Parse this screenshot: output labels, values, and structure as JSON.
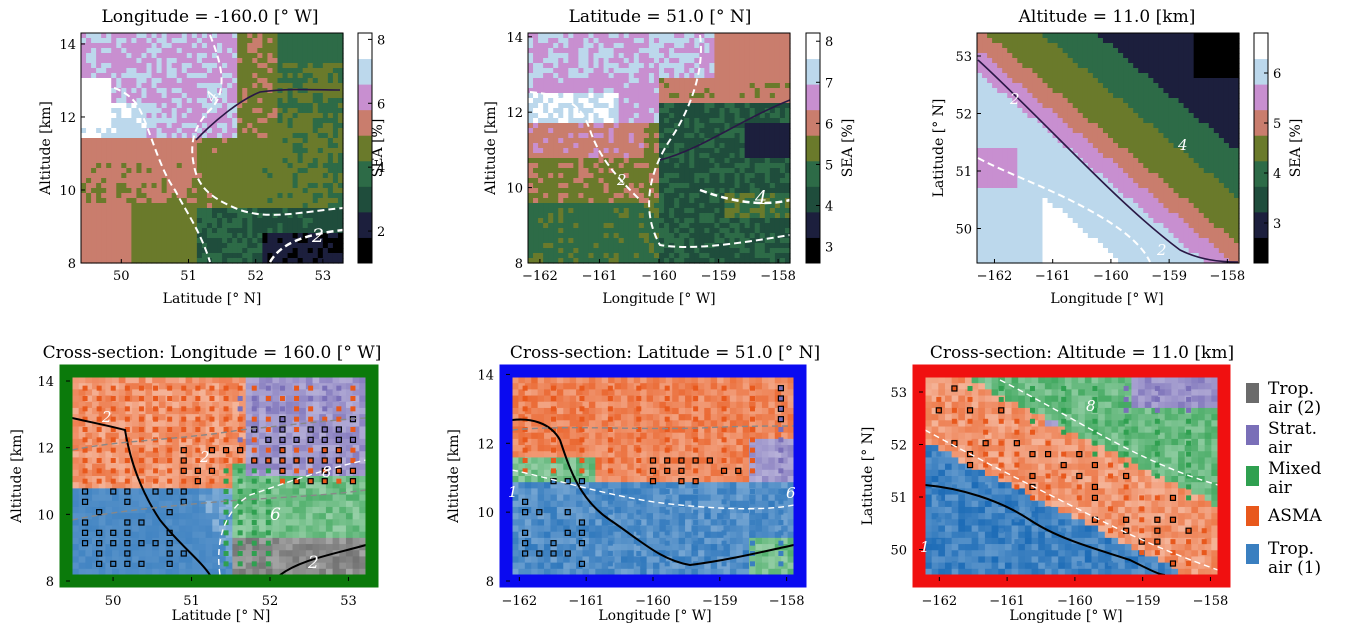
{
  "colors": {
    "sea_cmap": [
      "#000000",
      "#1c1f3d",
      "#1f4d3c",
      "#2d6b47",
      "#6a7a2b",
      "#c97d6d",
      "#c88fd0",
      "#bcd8ec",
      "#ffffff"
    ],
    "tropair2": "#6b6b6b",
    "strat": "#7a6fb8",
    "mixed": "#2fa050",
    "asma": "#e8581c",
    "tropair1": "#3a7fc0",
    "frame_green": "#0b7a0b",
    "frame_blue": "#0a0af0",
    "frame_red": "#f01010"
  },
  "chart_data": [
    {
      "type": "heatmap",
      "title": "Longitude = -160.0 [° W]",
      "xlabel": "Latitude [° N]",
      "ylabel": "Altitude [km]",
      "xlim": [
        49.4,
        53.3
      ],
      "ylim": [
        8,
        14.3
      ],
      "xticks": [
        "50",
        "51",
        "52",
        "53"
      ],
      "yticks": [
        "8",
        "10",
        "12",
        "14"
      ],
      "colorbar": {
        "label": "SEA [%]",
        "range": [
          1,
          8.2
        ],
        "ticks": [
          "2",
          "4",
          "6",
          "8"
        ]
      },
      "contour_labels": [
        "2",
        "4",
        "2"
      ]
    },
    {
      "type": "heatmap",
      "title": "Latitude = 51.0 [° N]",
      "xlabel": "Longitude [° W]",
      "ylabel": "Altitude [km]",
      "xlim": [
        -162.2,
        -157.8
      ],
      "ylim": [
        8,
        14.1
      ],
      "xticks": [
        "−162",
        "−161",
        "−160",
        "−159",
        "−158"
      ],
      "yticks": [
        "8",
        "10",
        "12",
        "14"
      ],
      "colorbar": {
        "label": "SEA [%]",
        "range": [
          2.6,
          8.2
        ],
        "ticks": [
          "3",
          "4",
          "5",
          "6",
          "7",
          "8"
        ]
      },
      "contour_labels": [
        "2",
        "4"
      ]
    },
    {
      "type": "heatmap",
      "title": "Altitude = 11.0 [km]",
      "xlabel": "Longitude [° W]",
      "ylabel": "Latitude [° N]",
      "xlim": [
        -162.3,
        -157.8
      ],
      "ylim": [
        49.4,
        53.4
      ],
      "xticks": [
        "−162",
        "−161",
        "−160",
        "−159",
        "−158"
      ],
      "yticks": [
        "50",
        "51",
        "52",
        "53"
      ],
      "colorbar": {
        "label": "SEA [%]",
        "range": [
          2.2,
          6.8
        ],
        "ticks": [
          "3",
          "4",
          "5",
          "6"
        ]
      },
      "contour_labels": [
        "2",
        "4",
        "2"
      ]
    },
    {
      "type": "heatmap",
      "title": "Cross-section: Longitude = 160.0 [° W]",
      "xlabel": "Latitude [° N]",
      "ylabel": "Altitude [km]",
      "xlim": [
        49.4,
        53.3
      ],
      "ylim": [
        8,
        14.3
      ],
      "xticks": [
        "50",
        "51",
        "52",
        "53"
      ],
      "yticks": [
        "8",
        "10",
        "12",
        "14"
      ],
      "contour_labels": [
        "2",
        "2",
        "8",
        "6",
        "2"
      ]
    },
    {
      "type": "heatmap",
      "title": "Cross-section: Latitude = 51.0 [° N]",
      "xlabel": "Longitude [° W]",
      "ylabel": "Altitude [km]",
      "xlim": [
        -162.2,
        -157.8
      ],
      "ylim": [
        8,
        14.1
      ],
      "xticks": [
        "−162",
        "−161",
        "−160",
        "−159",
        "−158"
      ],
      "yticks": [
        "8",
        "10",
        "12",
        "14"
      ],
      "contour_labels": [
        "1",
        "6"
      ]
    },
    {
      "type": "heatmap",
      "title": "Cross-section: Altitude = 11.0 [km]",
      "xlabel": "Longitude [° W]",
      "ylabel": "Latitude [° N]",
      "xlim": [
        -162.3,
        -157.8
      ],
      "ylim": [
        49.4,
        53.4
      ],
      "xticks": [
        "−162",
        "−161",
        "−160",
        "−159",
        "−158"
      ],
      "yticks": [
        "50",
        "51",
        "52",
        "53"
      ],
      "contour_labels": [
        "1",
        "8"
      ]
    }
  ],
  "legend": [
    {
      "label_lines": [
        "Trop.",
        "air (2)"
      ],
      "color_key": "tropair2"
    },
    {
      "label_lines": [
        "Strat.",
        "air"
      ],
      "color_key": "strat"
    },
    {
      "label_lines": [
        "Mixed",
        "air"
      ],
      "color_key": "mixed"
    },
    {
      "label_lines": [
        "ASMA"
      ],
      "color_key": "asma"
    },
    {
      "label_lines": [
        "Trop.",
        "air (1)"
      ],
      "color_key": "tropair1"
    }
  ]
}
